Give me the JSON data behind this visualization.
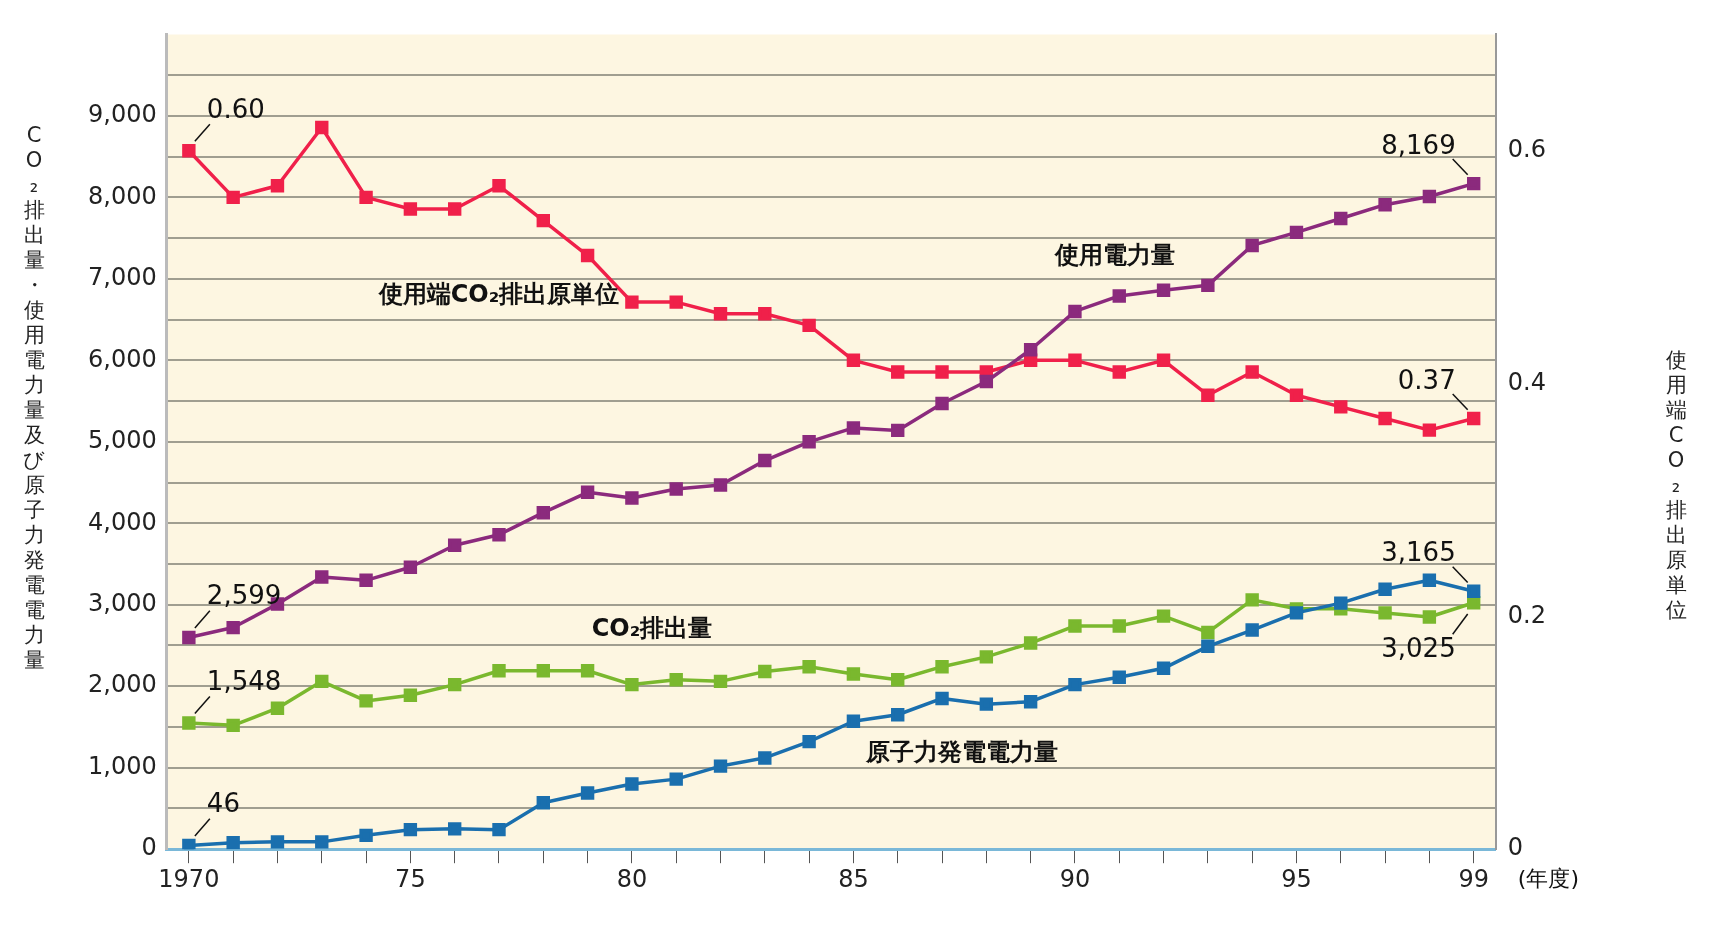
{
  "chart_data": {
    "type": "line",
    "ylabel": "CO₂排出量・使用電力量及び原子力発電電力量",
    "y2label": "使用端CO₂排出原単位",
    "xlabel": "(年度)",
    "x": [
      1970,
      1971,
      1972,
      1973,
      1974,
      1975,
      1976,
      1977,
      1978,
      1979,
      1980,
      1981,
      1982,
      1983,
      1984,
      1985,
      1986,
      1987,
      1988,
      1989,
      1990,
      1991,
      1992,
      1993,
      1994,
      1995,
      1996,
      1997,
      1998,
      1999
    ],
    "xlim": [
      1969.5,
      1999.5
    ],
    "xticks": [
      {
        "value": 1970,
        "label": "1970"
      },
      {
        "value": 1971,
        "label": null
      },
      {
        "value": 1972,
        "label": null
      },
      {
        "value": 1973,
        "label": null
      },
      {
        "value": 1974,
        "label": null
      },
      {
        "value": 1975,
        "label": "75"
      },
      {
        "value": 1976,
        "label": null
      },
      {
        "value": 1977,
        "label": null
      },
      {
        "value": 1978,
        "label": null
      },
      {
        "value": 1979,
        "label": null
      },
      {
        "value": 1980,
        "label": "80"
      },
      {
        "value": 1981,
        "label": null
      },
      {
        "value": 1982,
        "label": null
      },
      {
        "value": 1983,
        "label": null
      },
      {
        "value": 1984,
        "label": null
      },
      {
        "value": 1985,
        "label": "85"
      },
      {
        "value": 1986,
        "label": null
      },
      {
        "value": 1987,
        "label": null
      },
      {
        "value": 1988,
        "label": null
      },
      {
        "value": 1989,
        "label": null
      },
      {
        "value": 1990,
        "label": "90"
      },
      {
        "value": 1991,
        "label": null
      },
      {
        "value": 1992,
        "label": null
      },
      {
        "value": 1993,
        "label": null
      },
      {
        "value": 1994,
        "label": null
      },
      {
        "value": 1995,
        "label": "95"
      },
      {
        "value": 1996,
        "label": null
      },
      {
        "value": 1997,
        "label": null
      },
      {
        "value": 1998,
        "label": null
      },
      {
        "value": 1999,
        "label": "99"
      }
    ],
    "ylim": [
      0,
      10000
    ],
    "yticks": [
      0,
      {
        "value": 500,
        "label": null
      },
      {
        "value": 1000,
        "label": "1,000"
      },
      {
        "value": 1500,
        "label": null
      },
      {
        "value": 2000,
        "label": "2,000"
      },
      {
        "value": 2500,
        "label": null
      },
      {
        "value": 3000,
        "label": "3,000"
      },
      {
        "value": 3500,
        "label": null
      },
      {
        "value": 4000,
        "label": "4,000"
      },
      {
        "value": 4500,
        "label": null
      },
      {
        "value": 5000,
        "label": "5,000"
      },
      {
        "value": 5500,
        "label": null
      },
      {
        "value": 6000,
        "label": "6,000"
      },
      {
        "value": 6500,
        "label": null
      },
      {
        "value": 7000,
        "label": "7,000"
      },
      {
        "value": 7500,
        "label": null
      },
      {
        "value": 8000,
        "label": "8,000"
      },
      {
        "value": 8500,
        "label": null
      },
      {
        "value": 9000,
        "label": "9,000"
      },
      {
        "value": 9500,
        "label": null
      }
    ],
    "y2lim": [
      0,
      0.7
    ],
    "y2ticks": [
      0,
      0.2,
      0.4,
      0.6
    ],
    "grid": "y",
    "legend": false,
    "marker": "square",
    "line_style": "solid",
    "series": [
      {
        "name": "使用端CO₂排出原単位",
        "color": "#f0204a",
        "axis": "y2",
        "values": [
          0.6,
          0.56,
          0.57,
          0.62,
          0.56,
          0.55,
          0.55,
          0.57,
          0.54,
          0.51,
          0.47,
          0.47,
          0.46,
          0.46,
          0.45,
          0.42,
          0.41,
          0.41,
          0.41,
          0.42,
          0.42,
          0.41,
          0.42,
          0.39,
          0.41,
          0.39,
          0.38,
          0.37,
          0.36,
          0.37
        ],
        "value_labels": [
          "0.60",
          null,
          null,
          null,
          null,
          null,
          null,
          null,
          null,
          null,
          null,
          null,
          null,
          null,
          null,
          null,
          null,
          null,
          null,
          null,
          null,
          null,
          null,
          null,
          null,
          null,
          null,
          null,
          null,
          "0.37"
        ]
      },
      {
        "name": "使用電力量",
        "color": "#8b2a7d",
        "values": [
          2599,
          2720,
          3010,
          3340,
          3300,
          3460,
          3730,
          3860,
          4130,
          4380,
          4310,
          4420,
          4470,
          4770,
          5000,
          5170,
          5140,
          5470,
          5740,
          6130,
          6600,
          6790,
          6860,
          6920,
          7410,
          7570,
          7740,
          7910,
          8010,
          8169
        ],
        "value_labels": [
          "2,599",
          null,
          null,
          null,
          null,
          null,
          null,
          null,
          null,
          null,
          null,
          null,
          null,
          null,
          null,
          null,
          null,
          null,
          null,
          null,
          null,
          null,
          null,
          null,
          null,
          null,
          null,
          null,
          null,
          "8,169"
        ]
      },
      {
        "name": "CO₂排出量",
        "color": "#7ab82e",
        "values": [
          1548,
          1520,
          1730,
          2060,
          1820,
          1890,
          2020,
          2190,
          2190,
          2190,
          2020,
          2080,
          2060,
          2180,
          2240,
          2150,
          2080,
          2240,
          2360,
          2530,
          2740,
          2740,
          2860,
          2660,
          3060,
          2950,
          2950,
          2900,
          2850,
          3025
        ],
        "value_labels": [
          "1,548",
          null,
          null,
          null,
          null,
          null,
          null,
          null,
          null,
          null,
          null,
          null,
          null,
          null,
          null,
          null,
          null,
          null,
          null,
          null,
          null,
          null,
          null,
          null,
          null,
          null,
          null,
          null,
          null,
          "3,025"
        ]
      },
      {
        "name": "原子力発電電力量",
        "color": "#1a6fae",
        "values": [
          46,
          80,
          90,
          90,
          170,
          240,
          250,
          240,
          570,
          690,
          800,
          860,
          1020,
          1120,
          1320,
          1570,
          1650,
          1850,
          1780,
          1810,
          2020,
          2110,
          2220,
          2490,
          2690,
          2900,
          3020,
          3190,
          3300,
          3165
        ],
        "value_labels": [
          "46",
          null,
          null,
          null,
          null,
          null,
          null,
          null,
          null,
          null,
          null,
          null,
          null,
          null,
          null,
          null,
          null,
          null,
          null,
          null,
          null,
          null,
          null,
          null,
          null,
          null,
          null,
          null,
          null,
          "3,165"
        ]
      }
    ]
  }
}
